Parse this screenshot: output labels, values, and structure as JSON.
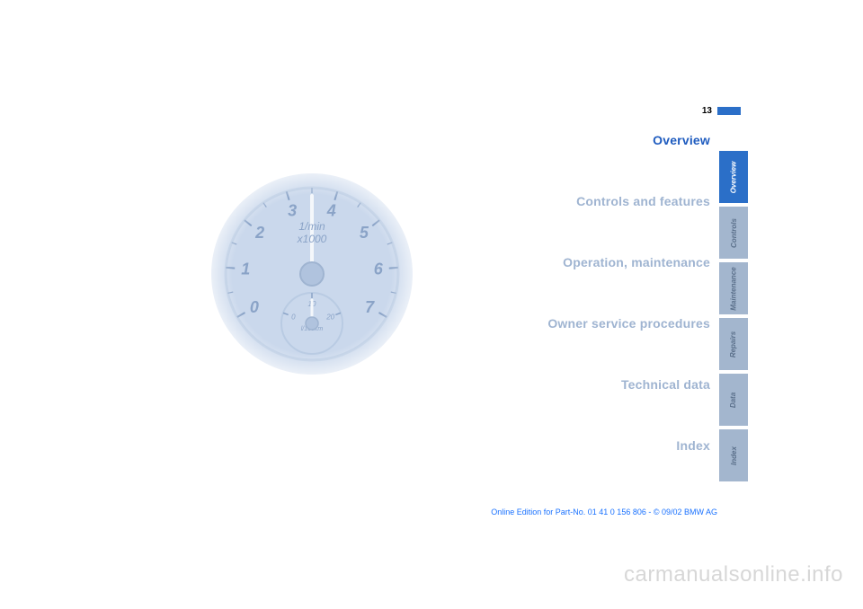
{
  "page_number": "13",
  "toc": {
    "items": [
      {
        "label": "Overview",
        "color": "#1e5bbf"
      },
      {
        "label": "Controls and features",
        "color": "#9fb4d1"
      },
      {
        "label": "Operation, maintenance",
        "color": "#9fb4d1"
      },
      {
        "label": "Owner service procedures",
        "color": "#9fb4d1"
      },
      {
        "label": "Technical data",
        "color": "#9fb4d1"
      },
      {
        "label": "Index",
        "color": "#9fb4d1"
      }
    ]
  },
  "tabs": {
    "items": [
      {
        "label": "Overview",
        "active": true
      },
      {
        "label": "Controls",
        "active": false
      },
      {
        "label": "Maintenance",
        "active": false
      },
      {
        "label": "Repairs",
        "active": false
      },
      {
        "label": "Data",
        "active": false
      },
      {
        "label": "Index",
        "active": false
      }
    ],
    "active_bg": "#2b6fc8",
    "inactive_bg": "#a3b6ce"
  },
  "gauge": {
    "diameter": 230,
    "face_fill": "#cad8ec",
    "dial_stroke": "#b9cbe3",
    "text_color": "#8aa3c7",
    "needle_color": "#f4f7fb",
    "hub_color": "#b0c3de",
    "main": {
      "unit_top": "1/min",
      "unit_bottom": "x1000",
      "ticks": [
        "0",
        "1",
        "2",
        "3",
        "4",
        "5",
        "6",
        "7"
      ]
    },
    "sub": {
      "ticks": [
        "0",
        "10",
        "20"
      ],
      "unit": "l/100km"
    }
  },
  "footnote": "Online Edition for Part-No. 01 41 0 156 806 - © 09/02 BMW AG",
  "watermark": "carmanualsonline.info",
  "colors": {
    "marker": "#2b6fc8",
    "footnote": "#1a72ff",
    "watermark": "#d7d7d7"
  }
}
